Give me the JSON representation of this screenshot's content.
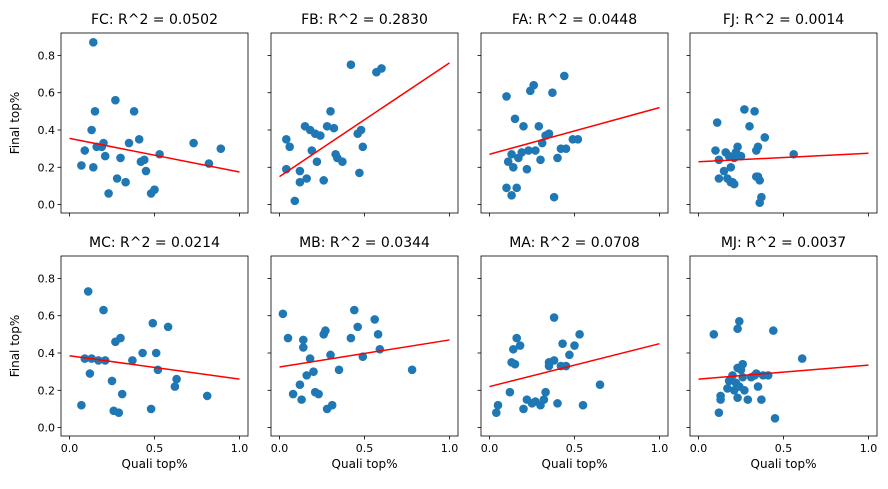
{
  "colors": {
    "point": "#1f77b4",
    "fit_line": "#ff0000",
    "axes": "#000000"
  },
  "chart_data": [
    {
      "type": "scatter",
      "title": "FC: R^2 = 0.0502",
      "xlabel": "",
      "ylabel": "Final top%",
      "xlim": [
        -0.05,
        1.05
      ],
      "ylim": [
        -0.045,
        0.92
      ],
      "xticks": [
        0.0,
        0.5,
        1.0
      ],
      "xtick_labels": [],
      "yticks": [
        0.0,
        0.2,
        0.4,
        0.6,
        0.8
      ],
      "ytick_labels": [
        "0.0",
        "0.2",
        "0.4",
        "0.6",
        "0.8"
      ],
      "fit_line": [
        [
          0.0,
          0.355
        ],
        [
          1.0,
          0.175
        ]
      ],
      "points": [
        [
          0.07,
          0.21
        ],
        [
          0.09,
          0.29
        ],
        [
          0.13,
          0.4
        ],
        [
          0.14,
          0.87
        ],
        [
          0.14,
          0.2
        ],
        [
          0.15,
          0.5
        ],
        [
          0.16,
          0.31
        ],
        [
          0.19,
          0.31
        ],
        [
          0.2,
          0.33
        ],
        [
          0.21,
          0.26
        ],
        [
          0.23,
          0.06
        ],
        [
          0.27,
          0.56
        ],
        [
          0.28,
          0.14
        ],
        [
          0.3,
          0.25
        ],
        [
          0.33,
          0.12
        ],
        [
          0.35,
          0.33
        ],
        [
          0.38,
          0.5
        ],
        [
          0.41,
          0.35
        ],
        [
          0.42,
          0.23
        ],
        [
          0.44,
          0.24
        ],
        [
          0.45,
          0.18
        ],
        [
          0.48,
          0.06
        ],
        [
          0.5,
          0.08
        ],
        [
          0.53,
          0.27
        ],
        [
          0.73,
          0.33
        ],
        [
          0.82,
          0.22
        ],
        [
          0.89,
          0.3
        ]
      ]
    },
    {
      "type": "scatter",
      "title": "FB: R^2 = 0.2830",
      "xlabel": "",
      "ylabel": "",
      "xlim": [
        -0.05,
        1.05
      ],
      "ylim": [
        -0.045,
        0.92
      ],
      "xticks": [
        0.0,
        0.5,
        1.0
      ],
      "xtick_labels": [],
      "yticks": [
        0.0,
        0.2,
        0.4,
        0.6,
        0.8
      ],
      "ytick_labels": [],
      "fit_line": [
        [
          0.0,
          0.15
        ],
        [
          1.0,
          0.76
        ]
      ],
      "points": [
        [
          0.04,
          0.35
        ],
        [
          0.06,
          0.31
        ],
        [
          0.12,
          0.18
        ],
        [
          0.15,
          0.42
        ],
        [
          0.16,
          0.14
        ],
        [
          0.18,
          0.4
        ],
        [
          0.19,
          0.29
        ],
        [
          0.21,
          0.38
        ],
        [
          0.22,
          0.23
        ],
        [
          0.24,
          0.37
        ],
        [
          0.26,
          0.13
        ],
        [
          0.28,
          0.42
        ],
        [
          0.3,
          0.5
        ],
        [
          0.32,
          0.41
        ],
        [
          0.33,
          0.27
        ],
        [
          0.34,
          0.25
        ],
        [
          0.37,
          0.23
        ],
        [
          0.42,
          0.75
        ],
        [
          0.46,
          0.38
        ],
        [
          0.47,
          0.17
        ],
        [
          0.48,
          0.4
        ],
        [
          0.49,
          0.31
        ],
        [
          0.57,
          0.71
        ],
        [
          0.6,
          0.73
        ],
        [
          0.12,
          0.12
        ],
        [
          0.09,
          0.02
        ],
        [
          0.04,
          0.19
        ]
      ]
    },
    {
      "type": "scatter",
      "title": "FA: R^2 = 0.0448",
      "xlabel": "",
      "ylabel": "",
      "xlim": [
        -0.05,
        1.05
      ],
      "ylim": [
        -0.045,
        0.92
      ],
      "xticks": [
        0.0,
        0.5,
        1.0
      ],
      "xtick_labels": [],
      "yticks": [
        0.0,
        0.2,
        0.4,
        0.6,
        0.8
      ],
      "ytick_labels": [],
      "fit_line": [
        [
          0.0,
          0.27
        ],
        [
          1.0,
          0.52
        ]
      ],
      "points": [
        [
          0.1,
          0.58
        ],
        [
          0.11,
          0.23
        ],
        [
          0.13,
          0.27
        ],
        [
          0.13,
          0.05
        ],
        [
          0.14,
          0.2
        ],
        [
          0.15,
          0.46
        ],
        [
          0.17,
          0.25
        ],
        [
          0.19,
          0.28
        ],
        [
          0.2,
          0.42
        ],
        [
          0.22,
          0.19
        ],
        [
          0.23,
          0.29
        ],
        [
          0.24,
          0.61
        ],
        [
          0.26,
          0.64
        ],
        [
          0.27,
          0.29
        ],
        [
          0.29,
          0.42
        ],
        [
          0.3,
          0.24
        ],
        [
          0.31,
          0.33
        ],
        [
          0.33,
          0.37
        ],
        [
          0.35,
          0.38
        ],
        [
          0.37,
          0.6
        ],
        [
          0.38,
          0.04
        ],
        [
          0.4,
          0.25
        ],
        [
          0.42,
          0.3
        ],
        [
          0.44,
          0.69
        ],
        [
          0.45,
          0.3
        ],
        [
          0.49,
          0.35
        ],
        [
          0.52,
          0.35
        ],
        [
          0.1,
          0.09
        ],
        [
          0.16,
          0.09
        ]
      ]
    },
    {
      "type": "scatter",
      "title": "FJ: R^2 = 0.0014",
      "xlabel": "",
      "ylabel": "",
      "xlim": [
        -0.05,
        1.05
      ],
      "ylim": [
        -0.045,
        0.92
      ],
      "xticks": [
        0.0,
        0.5,
        1.0
      ],
      "xtick_labels": [],
      "yticks": [
        0.0,
        0.2,
        0.4,
        0.6,
        0.8
      ],
      "ytick_labels": [],
      "fit_line": [
        [
          0.0,
          0.23
        ],
        [
          1.0,
          0.275
        ]
      ],
      "points": [
        [
          0.1,
          0.29
        ],
        [
          0.11,
          0.44
        ],
        [
          0.12,
          0.24
        ],
        [
          0.12,
          0.14
        ],
        [
          0.15,
          0.18
        ],
        [
          0.16,
          0.28
        ],
        [
          0.17,
          0.14
        ],
        [
          0.18,
          0.26
        ],
        [
          0.19,
          0.12
        ],
        [
          0.19,
          0.2
        ],
        [
          0.2,
          0.12
        ],
        [
          0.21,
          0.25
        ],
        [
          0.21,
          0.11
        ],
        [
          0.22,
          0.26
        ],
        [
          0.23,
          0.31
        ],
        [
          0.25,
          0.26
        ],
        [
          0.27,
          0.51
        ],
        [
          0.3,
          0.42
        ],
        [
          0.33,
          0.5
        ],
        [
          0.34,
          0.29
        ],
        [
          0.35,
          0.15
        ],
        [
          0.35,
          0.31
        ],
        [
          0.34,
          0.15
        ],
        [
          0.36,
          0.13
        ],
        [
          0.37,
          0.04
        ],
        [
          0.36,
          0.01
        ],
        [
          0.39,
          0.36
        ],
        [
          0.56,
          0.27
        ],
        [
          0.22,
          0.28
        ]
      ]
    },
    {
      "type": "scatter",
      "title": "MC: R^2 = 0.0214",
      "xlabel": "Quali top%",
      "ylabel": "Final top%",
      "xlim": [
        -0.05,
        1.05
      ],
      "ylim": [
        -0.045,
        0.92
      ],
      "xticks": [
        0.0,
        0.5,
        1.0
      ],
      "xtick_labels": [
        "0.0",
        "0.5",
        "1.0"
      ],
      "yticks": [
        0.0,
        0.2,
        0.4,
        0.6,
        0.8
      ],
      "ytick_labels": [
        "0.0",
        "0.2",
        "0.4",
        "0.6",
        "0.8"
      ],
      "fit_line": [
        [
          0.0,
          0.385
        ],
        [
          1.0,
          0.26
        ]
      ],
      "points": [
        [
          0.07,
          0.12
        ],
        [
          0.09,
          0.37
        ],
        [
          0.11,
          0.73
        ],
        [
          0.12,
          0.29
        ],
        [
          0.13,
          0.37
        ],
        [
          0.17,
          0.36
        ],
        [
          0.2,
          0.63
        ],
        [
          0.21,
          0.36
        ],
        [
          0.25,
          0.25
        ],
        [
          0.26,
          0.09
        ],
        [
          0.27,
          0.46
        ],
        [
          0.29,
          0.08
        ],
        [
          0.3,
          0.48
        ],
        [
          0.31,
          0.18
        ],
        [
          0.37,
          0.36
        ],
        [
          0.43,
          0.4
        ],
        [
          0.48,
          0.1
        ],
        [
          0.49,
          0.56
        ],
        [
          0.51,
          0.4
        ],
        [
          0.52,
          0.31
        ],
        [
          0.58,
          0.54
        ],
        [
          0.62,
          0.22
        ],
        [
          0.63,
          0.26
        ],
        [
          0.81,
          0.17
        ]
      ]
    },
    {
      "type": "scatter",
      "title": "MB: R^2 = 0.0344",
      "xlabel": "Quali top%",
      "ylabel": "",
      "xlim": [
        -0.05,
        1.05
      ],
      "ylim": [
        -0.045,
        0.92
      ],
      "xticks": [
        0.0,
        0.5,
        1.0
      ],
      "xtick_labels": [
        "0.0",
        "0.5",
        "1.0"
      ],
      "yticks": [
        0.0,
        0.2,
        0.4,
        0.6,
        0.8
      ],
      "ytick_labels": [],
      "fit_line": [
        [
          0.0,
          0.325
        ],
        [
          1.0,
          0.47
        ]
      ],
      "points": [
        [
          0.02,
          0.61
        ],
        [
          0.05,
          0.48
        ],
        [
          0.08,
          0.18
        ],
        [
          0.12,
          0.23
        ],
        [
          0.13,
          0.15
        ],
        [
          0.14,
          0.43
        ],
        [
          0.14,
          0.47
        ],
        [
          0.16,
          0.28
        ],
        [
          0.18,
          0.37
        ],
        [
          0.21,
          0.19
        ],
        [
          0.23,
          0.18
        ],
        [
          0.26,
          0.5
        ],
        [
          0.27,
          0.52
        ],
        [
          0.28,
          0.1
        ],
        [
          0.3,
          0.39
        ],
        [
          0.31,
          0.12
        ],
        [
          0.35,
          0.31
        ],
        [
          0.42,
          0.48
        ],
        [
          0.44,
          0.63
        ],
        [
          0.46,
          0.54
        ],
        [
          0.49,
          0.38
        ],
        [
          0.56,
          0.58
        ],
        [
          0.58,
          0.5
        ],
        [
          0.59,
          0.42
        ],
        [
          0.78,
          0.31
        ],
        [
          0.2,
          0.3
        ]
      ]
    },
    {
      "type": "scatter",
      "title": "MA: R^2 = 0.0708",
      "xlabel": "Quali top%",
      "ylabel": "",
      "xlim": [
        -0.05,
        1.05
      ],
      "ylim": [
        -0.045,
        0.92
      ],
      "xticks": [
        0.0,
        0.5,
        1.0
      ],
      "xtick_labels": [
        "0.0",
        "0.5",
        "1.0"
      ],
      "yticks": [
        0.0,
        0.2,
        0.4,
        0.6,
        0.8
      ],
      "ytick_labels": [],
      "fit_line": [
        [
          0.0,
          0.22
        ],
        [
          1.0,
          0.45
        ]
      ],
      "points": [
        [
          0.04,
          0.08
        ],
        [
          0.05,
          0.12
        ],
        [
          0.12,
          0.19
        ],
        [
          0.13,
          0.35
        ],
        [
          0.14,
          0.42
        ],
        [
          0.15,
          0.34
        ],
        [
          0.16,
          0.48
        ],
        [
          0.18,
          0.44
        ],
        [
          0.2,
          0.1
        ],
        [
          0.25,
          0.13
        ],
        [
          0.27,
          0.14
        ],
        [
          0.3,
          0.12
        ],
        [
          0.32,
          0.15
        ],
        [
          0.33,
          0.19
        ],
        [
          0.35,
          0.33
        ],
        [
          0.35,
          0.35
        ],
        [
          0.38,
          0.36
        ],
        [
          0.38,
          0.59
        ],
        [
          0.4,
          0.13
        ],
        [
          0.42,
          0.33
        ],
        [
          0.43,
          0.45
        ],
        [
          0.45,
          0.33
        ],
        [
          0.47,
          0.39
        ],
        [
          0.5,
          0.44
        ],
        [
          0.53,
          0.5
        ],
        [
          0.55,
          0.12
        ],
        [
          0.65,
          0.23
        ],
        [
          0.22,
          0.15
        ]
      ]
    },
    {
      "type": "scatter",
      "title": "MJ: R^2 = 0.0037",
      "xlabel": "Quali top%",
      "ylabel": "",
      "xlim": [
        -0.05,
        1.05
      ],
      "ylim": [
        -0.045,
        0.92
      ],
      "xticks": [
        0.0,
        0.5,
        1.0
      ],
      "xtick_labels": [
        "0.0",
        "0.5",
        "1.0"
      ],
      "yticks": [
        0.0,
        0.2,
        0.4,
        0.6,
        0.8
      ],
      "ytick_labels": [],
      "fit_line": [
        [
          0.0,
          0.26
        ],
        [
          1.0,
          0.335
        ]
      ],
      "points": [
        [
          0.09,
          0.5
        ],
        [
          0.12,
          0.08
        ],
        [
          0.13,
          0.15
        ],
        [
          0.13,
          0.17
        ],
        [
          0.17,
          0.21
        ],
        [
          0.18,
          0.25
        ],
        [
          0.2,
          0.28
        ],
        [
          0.21,
          0.2
        ],
        [
          0.22,
          0.24
        ],
        [
          0.23,
          0.32
        ],
        [
          0.23,
          0.16
        ],
        [
          0.23,
          0.53
        ],
        [
          0.24,
          0.57
        ],
        [
          0.25,
          0.31
        ],
        [
          0.26,
          0.34
        ],
        [
          0.26,
          0.27
        ],
        [
          0.27,
          0.2
        ],
        [
          0.29,
          0.15
        ],
        [
          0.31,
          0.27
        ],
        [
          0.33,
          0.28
        ],
        [
          0.34,
          0.29
        ],
        [
          0.35,
          0.22
        ],
        [
          0.37,
          0.15
        ],
        [
          0.38,
          0.28
        ],
        [
          0.41,
          0.28
        ],
        [
          0.44,
          0.52
        ],
        [
          0.45,
          0.05
        ],
        [
          0.61,
          0.37
        ],
        [
          0.24,
          0.22
        ]
      ]
    }
  ]
}
